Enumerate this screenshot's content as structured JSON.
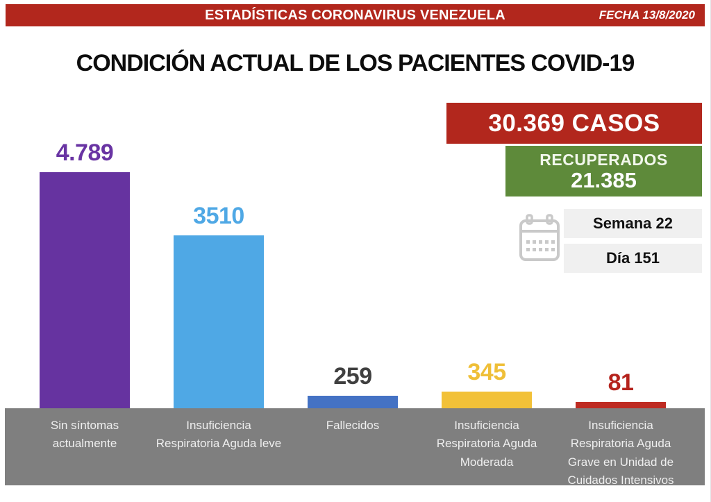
{
  "banner": {
    "title": "ESTADÍSTICAS CORONAVIRUS VENEZUELA",
    "date": "FECHA 13/8/2020"
  },
  "page_title": "CONDICIÓN ACTUAL DE LOS PACIENTES COVID-19",
  "stats": {
    "cases": "30.369 CASOS",
    "recovered_label": "RECUPERADOS",
    "recovered_value": "21.385",
    "week": "Semana 22",
    "day": "Día 151"
  },
  "colors": {
    "banner_red": "#B2271D",
    "cases_red": "#B2271D",
    "recovered_green": "#5E8A3A",
    "info_box_gray": "#F0F0F0",
    "footer_gray": "#7F7F7F",
    "footer_text": "#EFEFEF",
    "calendar_icon_gray": "#C9C9C9"
  },
  "icons": {
    "calendar": "calendar-icon"
  },
  "chart_data": {
    "type": "bar",
    "title": "CONDICIÓN ACTUAL DE LOS PACIENTES COVID-19",
    "categories": [
      "Sin síntomas actualmente",
      "Insuficiencia Respiratoria Aguda leve",
      "Fallecidos",
      "Insuficiencia Respiratoria Aguda Moderada",
      "Insuficiencia Respiratoria Aguda Grave en Unidad de Cuidados Intensivos"
    ],
    "values": [
      4789,
      3510,
      259,
      345,
      81
    ],
    "value_labels": [
      "4.789",
      "3510",
      "259",
      "345",
      "81"
    ],
    "bar_colors": [
      "#6633A0",
      "#4FA8E5",
      "#4472C4",
      "#F2C138",
      "#BE2B22"
    ],
    "value_label_colors": [
      "#6934A3",
      "#4FA8E5",
      "#404040",
      "#EFBF38",
      "#B5231D"
    ],
    "axis_labels_multiline": [
      "Sin síntomas\nactualmente",
      "Insuficiencia\nRespiratoria Aguda leve",
      "Fallecidos",
      "Insuficiencia\nRespiratoria Aguda\nModerada",
      "Insuficiencia\nRespiratoria Aguda\nGrave en Unidad de\nCuidados Intensivos"
    ],
    "xlabel": "",
    "ylabel": "",
    "ylim": [
      0,
      4789
    ],
    "grid": false,
    "legend": false
  }
}
